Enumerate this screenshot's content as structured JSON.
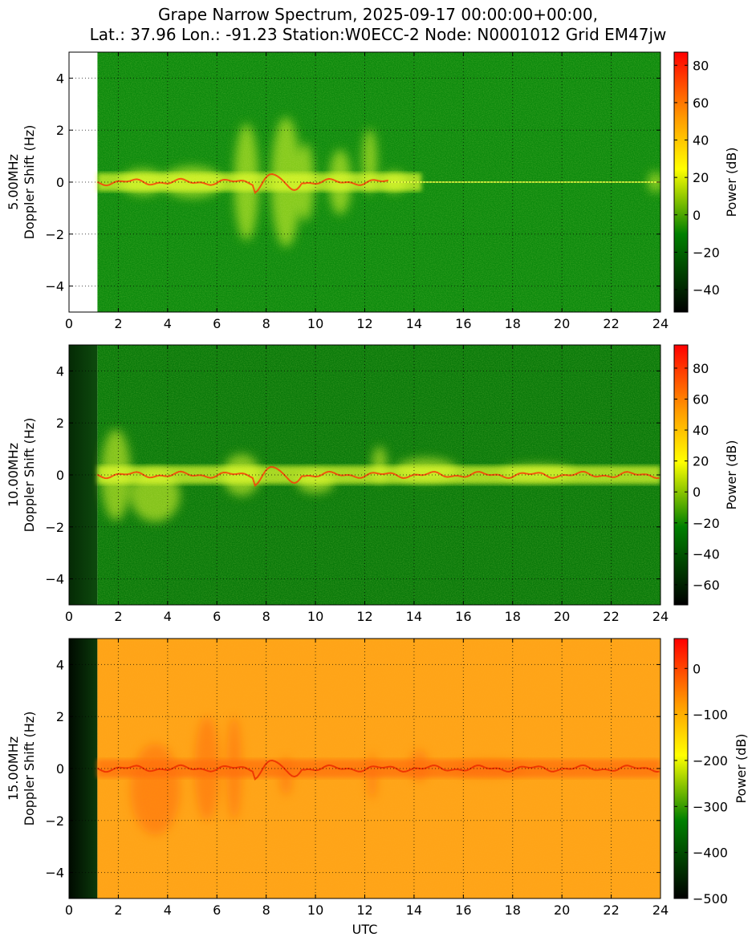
{
  "title_line1": "Grape Narrow Spectrum, 2025-09-17 00:00:00+00:00,",
  "title_line2": "Lat.: 37.96 Lon.: -91.23 Station:W0ECC-2 Node: N0001012 Grid EM47jw",
  "colors": {
    "colormap_stops": [
      "#000000",
      "#008000",
      "#ffff00",
      "#ff9900",
      "#ff0000"
    ]
  },
  "chart_data": [
    {
      "type": "heatmap",
      "band": "5.00MHz",
      "ylabel": "5.00MHz\nDoppler Shift (Hz)",
      "xlabel": "",
      "xlim": [
        0,
        24
      ],
      "ylim": [
        -5,
        5
      ],
      "x_ticks": [
        "0",
        "2",
        "4",
        "6",
        "8",
        "10",
        "12",
        "14",
        "16",
        "18",
        "20",
        "22",
        "24"
      ],
      "y_ticks": [
        "−4",
        "−2",
        "0",
        "2",
        "4"
      ],
      "y_tick_values": [
        -4,
        -2,
        0,
        2,
        4
      ],
      "grid": true,
      "data_start_utc": 1.15,
      "missing_fill": "white",
      "colorbar": {
        "label": "Power (dB)",
        "range": [
          -52,
          87
        ],
        "ticks": [
          "−40",
          "−20",
          "0",
          "20",
          "40",
          "60",
          "80"
        ],
        "tick_values": [
          -40,
          -20,
          0,
          20,
          40,
          60,
          80
        ]
      }
    },
    {
      "type": "heatmap",
      "band": "10.00MHz",
      "ylabel": "10.00MHz\nDoppler Shift (Hz)",
      "xlabel": "",
      "xlim": [
        0,
        24
      ],
      "ylim": [
        -5,
        5
      ],
      "x_ticks": [
        "0",
        "2",
        "4",
        "6",
        "8",
        "10",
        "12",
        "14",
        "16",
        "18",
        "20",
        "22",
        "24"
      ],
      "y_ticks": [
        "−4",
        "−2",
        "0",
        "2",
        "4"
      ],
      "y_tick_values": [
        -4,
        -2,
        0,
        2,
        4
      ],
      "grid": true,
      "data_start_utc": 1.15,
      "missing_fill": "dark",
      "colorbar": {
        "label": "Power (dB)",
        "range": [
          -73,
          95
        ],
        "ticks": [
          "−60",
          "−40",
          "−20",
          "0",
          "20",
          "40",
          "60",
          "80"
        ],
        "tick_values": [
          -60,
          -40,
          -20,
          0,
          20,
          40,
          60,
          80
        ]
      }
    },
    {
      "type": "heatmap",
      "band": "15.00MHz",
      "ylabel": "15.00MHz\nDoppler Shift (Hz)",
      "xlabel": "UTC",
      "xlim": [
        0,
        24
      ],
      "ylim": [
        -5,
        5
      ],
      "x_ticks": [
        "0",
        "2",
        "4",
        "6",
        "8",
        "10",
        "12",
        "14",
        "16",
        "18",
        "20",
        "22",
        "24"
      ],
      "y_ticks": [
        "−4",
        "−2",
        "0",
        "2",
        "4"
      ],
      "y_tick_values": [
        -4,
        -2,
        0,
        2,
        4
      ],
      "grid": true,
      "data_start_utc": 1.15,
      "missing_fill": "dark",
      "colorbar": {
        "label": "Power (dB)",
        "range": [
          -500,
          65
        ],
        "ticks": [
          "−500",
          "−400",
          "−300",
          "−200",
          "−100",
          "0"
        ],
        "tick_values": [
          -500,
          -400,
          -300,
          -200,
          -100,
          0
        ]
      }
    }
  ]
}
